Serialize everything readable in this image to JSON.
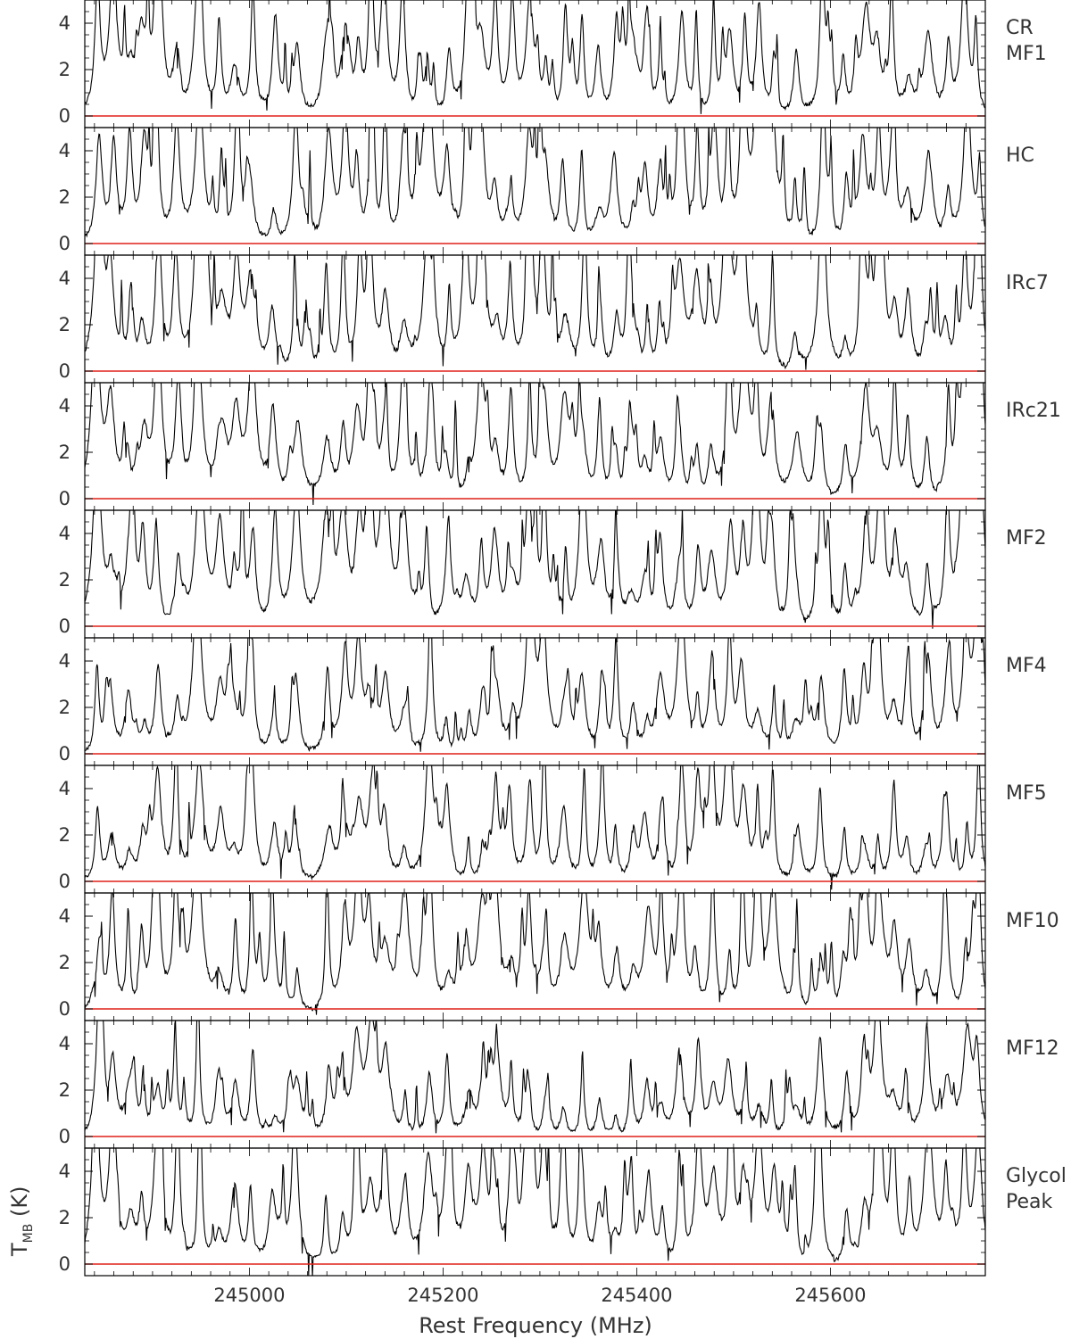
{
  "chart_data": {
    "type": "line",
    "xlabel": "Rest Frequency (MHz)",
    "ylabel": {
      "main": "T",
      "sub": "MB",
      "unit": " (K)"
    },
    "xlim": [
      244830,
      245760
    ],
    "ylim": [
      -0.5,
      5.0
    ],
    "x_ticks": [
      245000,
      245200,
      245400,
      245600
    ],
    "y_ticks": [
      0,
      2,
      4
    ],
    "baseline_color": "#e0201a",
    "spectrum_color": "#000000",
    "grid": false,
    "layout": "10 vertically stacked panels sharing the x axis",
    "line_centers_MHz": [
      {
        "x": 244843,
        "s": 1.0
      },
      {
        "x": 244858,
        "s": 0.7
      },
      {
        "x": 244876,
        "s": 0.55
      },
      {
        "x": 244890,
        "s": 0.45
      },
      {
        "x": 244905,
        "s": 1.2
      },
      {
        "x": 244925,
        "s": 0.7
      },
      {
        "x": 244948,
        "s": 1.1
      },
      {
        "x": 244970,
        "s": 0.5
      },
      {
        "x": 244985,
        "s": 0.55
      },
      {
        "x": 245002,
        "s": 0.9
      },
      {
        "x": 245025,
        "s": 0.55
      },
      {
        "x": 245048,
        "s": 0.6
      },
      {
        "x": 245080,
        "s": 1.0
      },
      {
        "x": 245098,
        "s": 0.6
      },
      {
        "x": 245112,
        "s": 0.75
      },
      {
        "x": 245125,
        "s": 0.9
      },
      {
        "x": 245140,
        "s": 0.7
      },
      {
        "x": 245160,
        "s": 0.75
      },
      {
        "x": 245185,
        "s": 1.0
      },
      {
        "x": 245205,
        "s": 0.6
      },
      {
        "x": 245225,
        "s": 0.7
      },
      {
        "x": 245240,
        "s": 0.8
      },
      {
        "x": 245255,
        "s": 0.6
      },
      {
        "x": 245270,
        "s": 0.65
      },
      {
        "x": 245290,
        "s": 0.95
      },
      {
        "x": 245305,
        "s": 0.75
      },
      {
        "x": 245325,
        "s": 0.6
      },
      {
        "x": 245345,
        "s": 0.8
      },
      {
        "x": 245362,
        "s": 0.5
      },
      {
        "x": 245378,
        "s": 0.45
      },
      {
        "x": 245395,
        "s": 0.4
      },
      {
        "x": 245410,
        "s": 0.45
      },
      {
        "x": 245425,
        "s": 0.55
      },
      {
        "x": 245445,
        "s": 0.95
      },
      {
        "x": 245462,
        "s": 0.7
      },
      {
        "x": 245478,
        "s": 0.8
      },
      {
        "x": 245495,
        "s": 1.0
      },
      {
        "x": 245510,
        "s": 0.85
      },
      {
        "x": 245525,
        "s": 0.9
      },
      {
        "x": 245540,
        "s": 0.75
      },
      {
        "x": 245565,
        "s": 0.45
      },
      {
        "x": 245590,
        "s": 1.0
      },
      {
        "x": 245615,
        "s": 0.5
      },
      {
        "x": 245635,
        "s": 0.55
      },
      {
        "x": 245650,
        "s": 1.1
      },
      {
        "x": 245665,
        "s": 0.9
      },
      {
        "x": 245680,
        "s": 0.55
      },
      {
        "x": 245700,
        "s": 0.65
      },
      {
        "x": 245720,
        "s": 0.55
      },
      {
        "x": 245740,
        "s": 0.9
      },
      {
        "x": 245752,
        "s": 1.3
      }
    ],
    "series": [
      {
        "name": [
          "CR",
          "MF1"
        ],
        "scale": 1.35,
        "seed": 11
      },
      {
        "name": [
          "HC"
        ],
        "scale": 1.6,
        "seed": 23
      },
      {
        "name": [
          "IRc7"
        ],
        "scale": 1.45,
        "seed": 37
      },
      {
        "name": [
          "IRc21"
        ],
        "scale": 1.3,
        "seed": 41
      },
      {
        "name": [
          "MF2"
        ],
        "scale": 1.55,
        "seed": 53
      },
      {
        "name": [
          "MF4"
        ],
        "scale": 1.1,
        "seed": 67
      },
      {
        "name": [
          "MF5"
        ],
        "scale": 1.05,
        "seed": 71
      },
      {
        "name": [
          "MF10"
        ],
        "scale": 1.5,
        "seed": 83
      },
      {
        "name": [
          "MF12"
        ],
        "scale": 0.9,
        "seed": 97
      },
      {
        "name": [
          "Glycol",
          "Peak"
        ],
        "scale": 1.65,
        "seed": 101
      }
    ]
  }
}
